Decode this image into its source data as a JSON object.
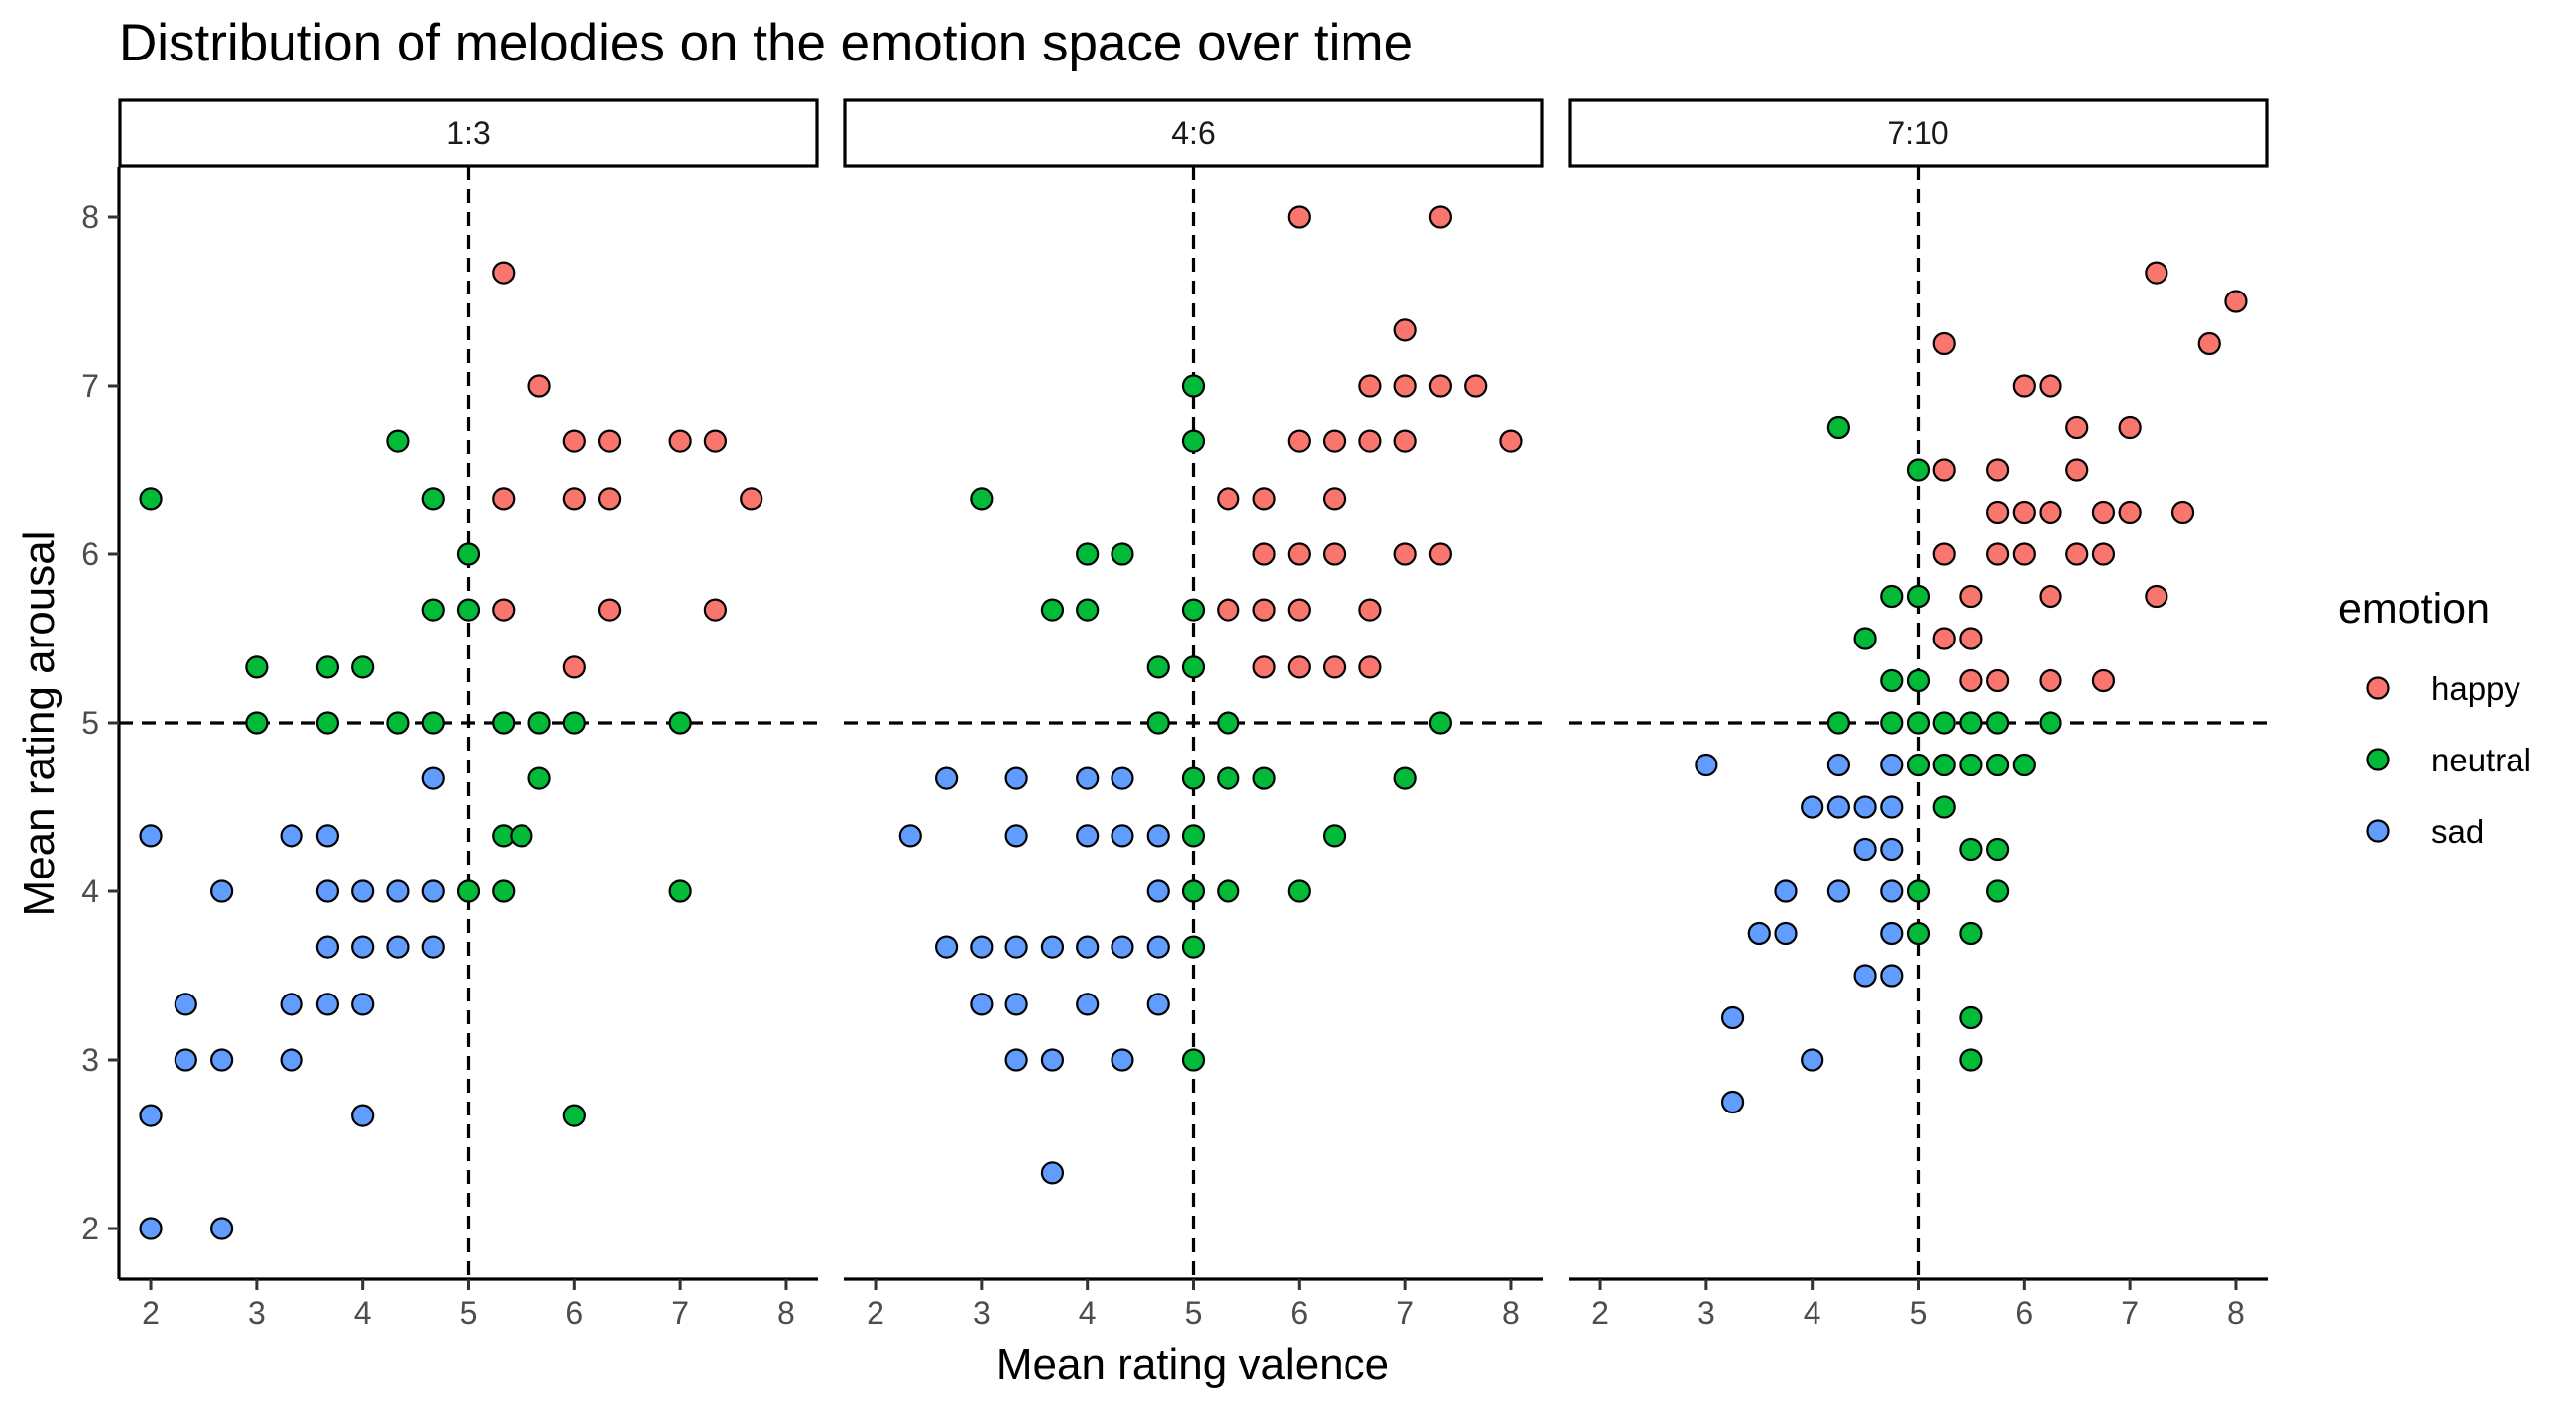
{
  "chart_data": {
    "type": "scatter",
    "title": "Distribution of melodies on the emotion space over time",
    "xlabel": "Mean rating valence",
    "ylabel": "Mean rating arousal",
    "xlim": [
      1.7,
      8.3
    ],
    "ylim": [
      1.7,
      8.3
    ],
    "x_ticks": [
      "2",
      "3",
      "4",
      "5",
      "6",
      "7",
      "8"
    ],
    "y_ticks": [
      "2",
      "3",
      "4",
      "5",
      "6",
      "7",
      "8"
    ],
    "reference_lines": {
      "x": 5,
      "y": 5,
      "style": "dashed"
    },
    "legend": {
      "title": "emotion",
      "placement": "right"
    },
    "grid": false,
    "series_styles": [
      {
        "name": "happy",
        "color": "#F8766D"
      },
      {
        "name": "neutral",
        "color": "#00BA38"
      },
      {
        "name": "sad",
        "color": "#619CFF"
      }
    ],
    "facets": [
      {
        "label": "1:3",
        "series": [
          {
            "name": "happy",
            "points": [
              [
                5.33,
                7.67
              ],
              [
                5.67,
                7
              ],
              [
                6,
                6.67
              ],
              [
                6.33,
                6.67
              ],
              [
                7,
                6.67
              ],
              [
                7.33,
                6.67
              ],
              [
                5.33,
                6.33
              ],
              [
                6,
                6.33
              ],
              [
                6.33,
                6.33
              ],
              [
                7.67,
                6.33
              ],
              [
                5.33,
                5.67
              ],
              [
                6.33,
                5.67
              ],
              [
                7.33,
                5.67
              ],
              [
                6,
                5.33
              ]
            ]
          },
          {
            "name": "neutral",
            "points": [
              [
                2,
                6.33
              ],
              [
                4.33,
                6.67
              ],
              [
                4.67,
                6.33
              ],
              [
                5,
                6
              ],
              [
                4.67,
                5.67
              ],
              [
                5,
                5.67
              ],
              [
                3,
                5.33
              ],
              [
                3.67,
                5.33
              ],
              [
                4,
                5.33
              ],
              [
                3,
                5
              ],
              [
                3.67,
                5
              ],
              [
                4.33,
                5
              ],
              [
                4.67,
                5
              ],
              [
                5.33,
                5
              ],
              [
                5.67,
                5
              ],
              [
                6,
                5
              ],
              [
                7,
                5
              ],
              [
                5.67,
                4.67
              ],
              [
                5.33,
                4.33
              ],
              [
                5.5,
                4.33
              ],
              [
                5,
                4
              ],
              [
                5.33,
                4
              ],
              [
                7,
                4
              ],
              [
                6,
                2.67
              ]
            ]
          },
          {
            "name": "sad",
            "points": [
              [
                4.67,
                4.67
              ],
              [
                2,
                4.33
              ],
              [
                3.33,
                4.33
              ],
              [
                3.67,
                4.33
              ],
              [
                2.67,
                4
              ],
              [
                3.67,
                4
              ],
              [
                4,
                4
              ],
              [
                4.33,
                4
              ],
              [
                4.67,
                4
              ],
              [
                3.67,
                3.67
              ],
              [
                4,
                3.67
              ],
              [
                4.33,
                3.67
              ],
              [
                4.67,
                3.67
              ],
              [
                2.33,
                3.33
              ],
              [
                3.33,
                3.33
              ],
              [
                3.67,
                3.33
              ],
              [
                4,
                3.33
              ],
              [
                2.33,
                3
              ],
              [
                2.67,
                3
              ],
              [
                3.33,
                3
              ],
              [
                2,
                2.67
              ],
              [
                4,
                2.67
              ],
              [
                2,
                2
              ],
              [
                2.67,
                2
              ]
            ]
          }
        ]
      },
      {
        "label": "4:6",
        "series": [
          {
            "name": "happy",
            "points": [
              [
                6,
                8
              ],
              [
                7.33,
                8
              ],
              [
                7,
                7.33
              ],
              [
                6.67,
                7
              ],
              [
                7,
                7
              ],
              [
                7.33,
                7
              ],
              [
                7.67,
                7
              ],
              [
                6,
                6.67
              ],
              [
                6.33,
                6.67
              ],
              [
                6.67,
                6.67
              ],
              [
                7,
                6.67
              ],
              [
                8,
                6.67
              ],
              [
                5.33,
                6.33
              ],
              [
                5.67,
                6.33
              ],
              [
                6.33,
                6.33
              ],
              [
                5.67,
                6
              ],
              [
                6,
                6
              ],
              [
                6.33,
                6
              ],
              [
                7,
                6
              ],
              [
                7.33,
                6
              ],
              [
                5.33,
                5.67
              ],
              [
                5.67,
                5.67
              ],
              [
                6,
                5.67
              ],
              [
                6.67,
                5.67
              ],
              [
                5.67,
                5.33
              ],
              [
                6,
                5.33
              ],
              [
                6.33,
                5.33
              ],
              [
                6.67,
                5.33
              ]
            ]
          },
          {
            "name": "neutral",
            "points": [
              [
                5,
                7
              ],
              [
                5,
                6.67
              ],
              [
                3,
                6.33
              ],
              [
                4,
                6
              ],
              [
                4.33,
                6
              ],
              [
                3.67,
                5.67
              ],
              [
                4,
                5.67
              ],
              [
                5,
                5.67
              ],
              [
                4.67,
                5.33
              ],
              [
                5,
                5.33
              ],
              [
                4.67,
                5
              ],
              [
                5.33,
                5
              ],
              [
                7.33,
                5
              ],
              [
                5,
                4.67
              ],
              [
                5.33,
                4.67
              ],
              [
                5.67,
                4.67
              ],
              [
                7,
                4.67
              ],
              [
                5,
                4.33
              ],
              [
                6.33,
                4.33
              ],
              [
                5,
                4
              ],
              [
                5.33,
                4
              ],
              [
                6,
                4
              ],
              [
                5,
                3.67
              ],
              [
                5,
                3
              ]
            ]
          },
          {
            "name": "sad",
            "points": [
              [
                2.67,
                4.67
              ],
              [
                3.33,
                4.67
              ],
              [
                4,
                4.67
              ],
              [
                4.33,
                4.67
              ],
              [
                2.33,
                4.33
              ],
              [
                3.33,
                4.33
              ],
              [
                4,
                4.33
              ],
              [
                4.33,
                4.33
              ],
              [
                4.67,
                4.33
              ],
              [
                4.67,
                4
              ],
              [
                2.67,
                3.67
              ],
              [
                3,
                3.67
              ],
              [
                3.33,
                3.67
              ],
              [
                3.67,
                3.67
              ],
              [
                4,
                3.67
              ],
              [
                4.33,
                3.67
              ],
              [
                4.67,
                3.67
              ],
              [
                3,
                3.33
              ],
              [
                3.33,
                3.33
              ],
              [
                4,
                3.33
              ],
              [
                4.67,
                3.33
              ],
              [
                3.33,
                3
              ],
              [
                3.67,
                3
              ],
              [
                4.33,
                3
              ],
              [
                3.67,
                2.33
              ]
            ]
          }
        ]
      },
      {
        "label": "7:10",
        "series": [
          {
            "name": "happy",
            "points": [
              [
                7.25,
                7.67
              ],
              [
                8,
                7.5
              ],
              [
                5.25,
                7.25
              ],
              [
                7.75,
                7.25
              ],
              [
                6,
                7
              ],
              [
                6.25,
                7
              ],
              [
                6.5,
                6.75
              ],
              [
                7,
                6.75
              ],
              [
                5.25,
                6.5
              ],
              [
                5.75,
                6.5
              ],
              [
                6.5,
                6.5
              ],
              [
                5.75,
                6.25
              ],
              [
                6,
                6.25
              ],
              [
                6.25,
                6.25
              ],
              [
                6.75,
                6.25
              ],
              [
                7,
                6.25
              ],
              [
                7.5,
                6.25
              ],
              [
                5.25,
                6
              ],
              [
                5.75,
                6
              ],
              [
                6,
                6
              ],
              [
                6.5,
                6
              ],
              [
                6.75,
                6
              ],
              [
                5.5,
                5.75
              ],
              [
                6.25,
                5.75
              ],
              [
                7.25,
                5.75
              ],
              [
                5.25,
                5.5
              ],
              [
                5.5,
                5.5
              ],
              [
                5.5,
                5.25
              ],
              [
                5.75,
                5.25
              ],
              [
                6.25,
                5.25
              ],
              [
                6.75,
                5.25
              ]
            ]
          },
          {
            "name": "neutral",
            "points": [
              [
                4.25,
                6.75
              ],
              [
                5,
                6.5
              ],
              [
                4.75,
                5.75
              ],
              [
                5,
                5.75
              ],
              [
                4.5,
                5.5
              ],
              [
                4.75,
                5.25
              ],
              [
                5,
                5.25
              ],
              [
                4.25,
                5
              ],
              [
                4.75,
                5
              ],
              [
                5,
                5
              ],
              [
                5.25,
                5
              ],
              [
                5.5,
                5
              ],
              [
                5.75,
                5
              ],
              [
                6.25,
                5
              ],
              [
                5,
                4.75
              ],
              [
                5.25,
                4.75
              ],
              [
                5.5,
                4.75
              ],
              [
                5.75,
                4.75
              ],
              [
                6,
                4.75
              ],
              [
                5.25,
                4.5
              ],
              [
                5.5,
                4.25
              ],
              [
                5.75,
                4.25
              ],
              [
                5,
                4
              ],
              [
                5.75,
                4
              ],
              [
                5,
                3.75
              ],
              [
                5.5,
                3.75
              ],
              [
                5.5,
                3.25
              ],
              [
                5.5,
                3
              ]
            ]
          },
          {
            "name": "sad",
            "points": [
              [
                3,
                4.75
              ],
              [
                4.25,
                4.75
              ],
              [
                4.75,
                4.75
              ],
              [
                4,
                4.5
              ],
              [
                4.25,
                4.5
              ],
              [
                4.5,
                4.5
              ],
              [
                4.75,
                4.5
              ],
              [
                4.5,
                4.25
              ],
              [
                4.75,
                4.25
              ],
              [
                3.75,
                4
              ],
              [
                4.25,
                4
              ],
              [
                4.75,
                4
              ],
              [
                3.5,
                3.75
              ],
              [
                3.75,
                3.75
              ],
              [
                4.75,
                3.75
              ],
              [
                4.5,
                3.5
              ],
              [
                4.75,
                3.5
              ],
              [
                3.25,
                3.25
              ],
              [
                4,
                3
              ],
              [
                3.25,
                2.75
              ]
            ]
          }
        ]
      }
    ]
  }
}
